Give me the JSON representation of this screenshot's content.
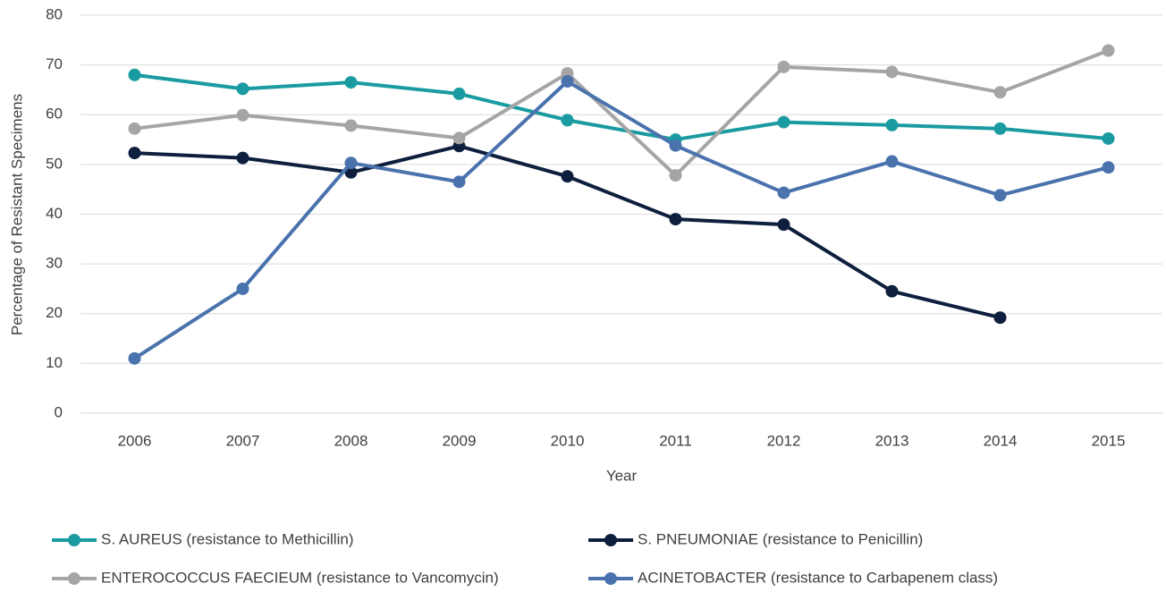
{
  "chart_data": {
    "type": "line",
    "xlabel": "Year",
    "ylabel": "Percentage of Resistant Specimens",
    "categories": [
      "2006",
      "2007",
      "2008",
      "2009",
      "2010",
      "2011",
      "2012",
      "2013",
      "2014",
      "2015"
    ],
    "series": [
      {
        "name": "S. AUREUS (resistance to Methicillin)",
        "color": "#1a9ba1",
        "values": [
          68,
          65.2,
          66.5,
          64.2,
          58.9,
          55,
          58.5,
          57.9,
          57.2,
          55.2
        ]
      },
      {
        "name": "S. PNEUMONIAE (resistance to Penicillin)",
        "color": "#0d1f3c",
        "values": [
          52.3,
          51.3,
          48.4,
          53.7,
          47.6,
          39,
          37.9,
          24.5,
          19.2,
          null
        ]
      },
      {
        "name": "ENTEROCOCCUS FAECIEUM (resistance to Vancomycin)",
        "color": "#a5a5a5",
        "values": [
          57.2,
          59.9,
          57.8,
          55.3,
          68.3,
          47.8,
          69.6,
          68.6,
          64.5,
          72.9
        ]
      },
      {
        "name": "ACINETOBACTER (resistance to Carbapenem class)",
        "color": "#4a72ad",
        "values": [
          11,
          25,
          50.3,
          46.5,
          66.7,
          53.8,
          44.3,
          50.6,
          43.8,
          49.4
        ]
      }
    ],
    "ylim": [
      0,
      80
    ],
    "yticks": [
      0,
      10,
      20,
      30,
      40,
      50,
      60,
      70,
      80
    ],
    "grid": true
  }
}
